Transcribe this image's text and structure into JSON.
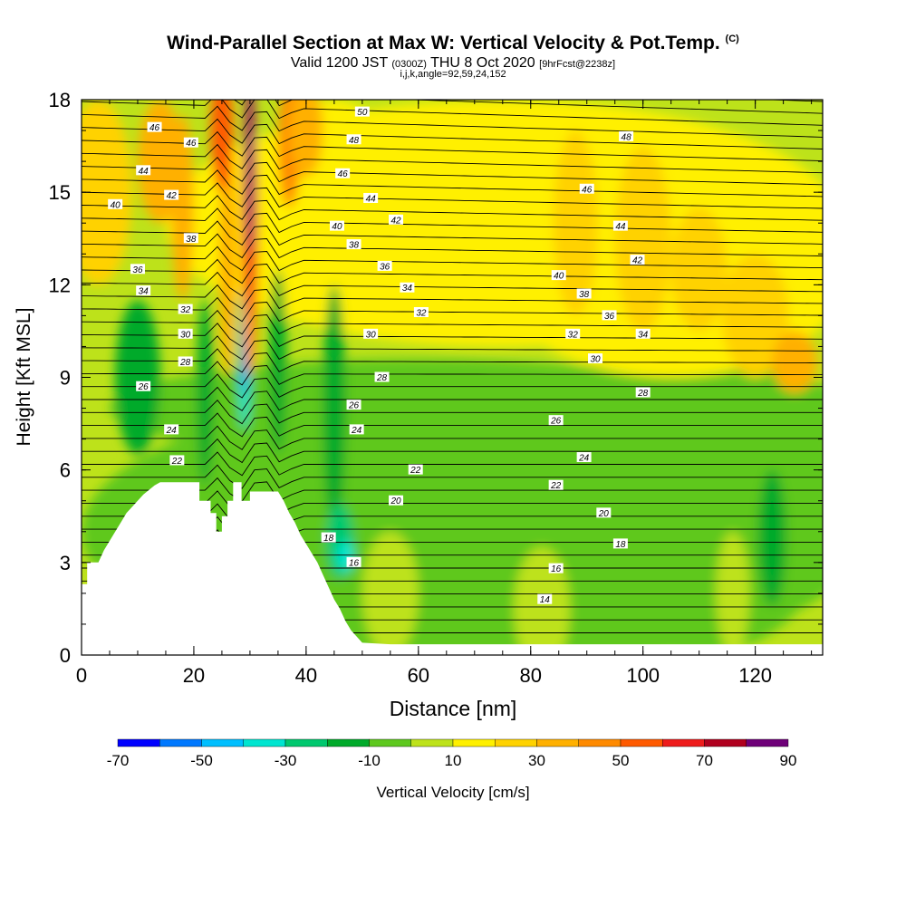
{
  "header": {
    "title": "Wind-Parallel Section at Max W: Vertical Velocity & Pot.Temp.",
    "title_suffix": "(C)",
    "valid_prefix": "Valid 1200 JST",
    "valid_utc": "(0300Z)",
    "valid_date": "THU 8 Oct 2020",
    "forecast": "[9hrFcst@2238z]",
    "params": "i,j,k,angle=92,59,24,152"
  },
  "chart_data": {
    "type": "heatmap",
    "xlabel": "Distance [nm]",
    "ylabel": "Height [Kft MSL]",
    "xlim": [
      0,
      132
    ],
    "ylim": [
      0,
      18
    ],
    "x_ticks": [
      0,
      20,
      40,
      60,
      80,
      100,
      120
    ],
    "y_ticks": [
      0,
      3,
      6,
      9,
      12,
      15,
      18
    ],
    "colorbar": {
      "label": "Vertical Velocity [cm/s]",
      "tick_labels": [
        -70,
        -50,
        -30,
        -10,
        10,
        30,
        50,
        70,
        90
      ],
      "bins": [
        -70,
        -60,
        -50,
        -40,
        -30,
        -20,
        -10,
        0,
        10,
        20,
        30,
        40,
        50,
        60,
        70,
        80,
        90
      ],
      "colors": [
        "#0000ff",
        "#0078ff",
        "#00bfff",
        "#00e5d0",
        "#00c86e",
        "#00aa2a",
        "#5ec81e",
        "#bde21a",
        "#fff000",
        "#ffd200",
        "#ffb000",
        "#ff8a00",
        "#ff5a00",
        "#ee1c1c",
        "#b0001e",
        "#6e0078"
      ]
    },
    "contour_labels": [
      {
        "x": 13,
        "y": 17.1,
        "text": "46"
      },
      {
        "x": 19.5,
        "y": 16.6,
        "text": "46"
      },
      {
        "x": 11,
        "y": 15.7,
        "text": "44"
      },
      {
        "x": 16,
        "y": 14.9,
        "text": "42"
      },
      {
        "x": 6,
        "y": 14.6,
        "text": "40"
      },
      {
        "x": 19.5,
        "y": 13.5,
        "text": "38"
      },
      {
        "x": 10,
        "y": 12.5,
        "text": "36"
      },
      {
        "x": 11,
        "y": 11.8,
        "text": "34"
      },
      {
        "x": 18.5,
        "y": 11.2,
        "text": "32"
      },
      {
        "x": 18.5,
        "y": 10.4,
        "text": "30"
      },
      {
        "x": 18.5,
        "y": 9.5,
        "text": "28"
      },
      {
        "x": 11,
        "y": 8.7,
        "text": "26"
      },
      {
        "x": 16,
        "y": 7.3,
        "text": "24"
      },
      {
        "x": 17,
        "y": 6.3,
        "text": "22"
      },
      {
        "x": 50,
        "y": 17.6,
        "text": "50"
      },
      {
        "x": 48.5,
        "y": 16.7,
        "text": "48"
      },
      {
        "x": 46.5,
        "y": 15.6,
        "text": "46"
      },
      {
        "x": 51.5,
        "y": 14.8,
        "text": "44"
      },
      {
        "x": 56,
        "y": 14.1,
        "text": "42"
      },
      {
        "x": 45.5,
        "y": 13.9,
        "text": "40"
      },
      {
        "x": 48.5,
        "y": 13.3,
        "text": "38"
      },
      {
        "x": 54,
        "y": 12.6,
        "text": "36"
      },
      {
        "x": 58,
        "y": 11.9,
        "text": "34"
      },
      {
        "x": 60.5,
        "y": 11.1,
        "text": "32"
      },
      {
        "x": 51.5,
        "y": 10.4,
        "text": "30"
      },
      {
        "x": 53.5,
        "y": 9.0,
        "text": "28"
      },
      {
        "x": 48.5,
        "y": 8.1,
        "text": "26"
      },
      {
        "x": 49,
        "y": 7.3,
        "text": "24"
      },
      {
        "x": 59.5,
        "y": 6.0,
        "text": "22"
      },
      {
        "x": 56,
        "y": 5.0,
        "text": "20"
      },
      {
        "x": 44,
        "y": 3.8,
        "text": "18"
      },
      {
        "x": 48.5,
        "y": 3.0,
        "text": "16"
      },
      {
        "x": 97,
        "y": 16.8,
        "text": "48"
      },
      {
        "x": 90,
        "y": 15.1,
        "text": "46"
      },
      {
        "x": 96,
        "y": 13.9,
        "text": "44"
      },
      {
        "x": 99,
        "y": 12.8,
        "text": "42"
      },
      {
        "x": 85,
        "y": 12.3,
        "text": "40"
      },
      {
        "x": 89.5,
        "y": 11.7,
        "text": "38"
      },
      {
        "x": 94,
        "y": 11.0,
        "text": "36"
      },
      {
        "x": 100,
        "y": 10.4,
        "text": "34"
      },
      {
        "x": 87.5,
        "y": 10.4,
        "text": "32"
      },
      {
        "x": 91.5,
        "y": 9.6,
        "text": "30"
      },
      {
        "x": 100,
        "y": 8.5,
        "text": "28"
      },
      {
        "x": 84.5,
        "y": 7.6,
        "text": "26"
      },
      {
        "x": 89.5,
        "y": 6.4,
        "text": "24"
      },
      {
        "x": 84.5,
        "y": 5.5,
        "text": "22"
      },
      {
        "x": 93,
        "y": 4.6,
        "text": "20"
      },
      {
        "x": 96,
        "y": 3.6,
        "text": "18"
      },
      {
        "x": 84.5,
        "y": 2.8,
        "text": "16"
      },
      {
        "x": 82.5,
        "y": 1.8,
        "text": "14"
      }
    ]
  }
}
